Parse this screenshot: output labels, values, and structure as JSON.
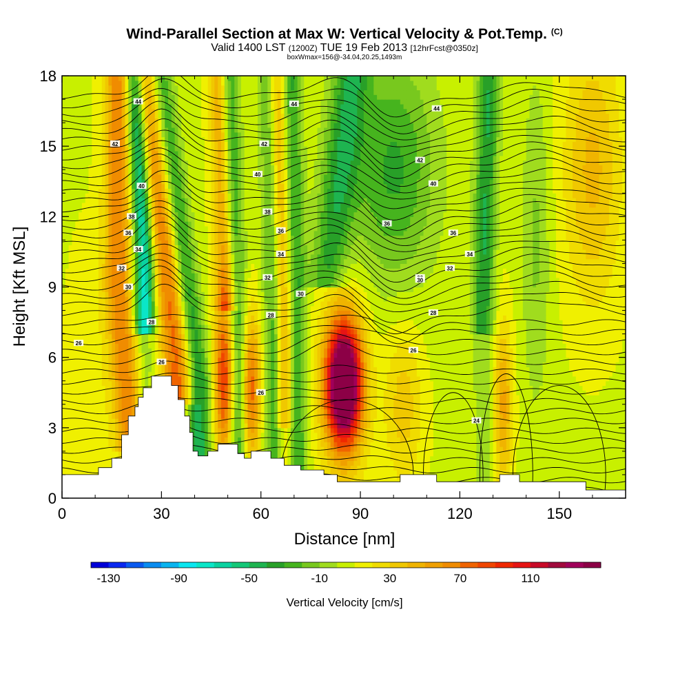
{
  "titles": {
    "main": "Wind-Parallel Section at Max W: Vertical Velocity & Pot.Temp.",
    "main_sup": "(C)",
    "sub_a": "Valid 1400 LST",
    "sub_b": "(1200Z)",
    "sub_c": "TUE 19 Feb 2013",
    "sub_d": "[12hrFcst@0350z]",
    "sub_sub": "boxWmax=156@-34.04,20.25,1493m"
  },
  "chart_data": {
    "type": "heatmap",
    "title": "Wind-Parallel Section at Max W: Vertical Velocity & Pot.Temp.",
    "xlabel": "Distance [nm]",
    "ylabel": "Height [Kft MSL]",
    "xlim": [
      0,
      170
    ],
    "ylim": [
      0,
      18
    ],
    "xticks": [
      0,
      30,
      60,
      90,
      120,
      150
    ],
    "xtick_labels": [
      "0",
      "30",
      "60",
      "90",
      "120",
      "150"
    ],
    "yticks": [
      0,
      3,
      6,
      9,
      12,
      15,
      18
    ],
    "ytick_labels": [
      "0",
      "3",
      "6",
      "9",
      "12",
      "15",
      "18"
    ],
    "colorbar": {
      "label": "Vertical Velocity [cm/s]",
      "min": -140,
      "max": 150,
      "step": 10,
      "tick_values": [
        -130,
        -90,
        -50,
        -10,
        30,
        70,
        110
      ],
      "tick_labels": [
        "-130",
        "-90",
        "-50",
        "-10",
        "30",
        "70",
        "110"
      ],
      "colors": [
        "#0000d8",
        "#0a28f0",
        "#0a5af0",
        "#0a8cf0",
        "#0ab4f0",
        "#0ae6f0",
        "#0ae6c8",
        "#0ad2a0",
        "#14c878",
        "#1eb450",
        "#28a028",
        "#46b41e",
        "#78c81e",
        "#a0dc1e",
        "#c8f000",
        "#f0f000",
        "#f0dc00",
        "#f0c800",
        "#f0b400",
        "#f0a000",
        "#f08c00",
        "#f06400",
        "#f04600",
        "#f02800",
        "#e61414",
        "#c80a28",
        "#a00a3c",
        "#a0005a",
        "#8c0046"
      ]
    },
    "contour_field": "Potential temperature (C)",
    "contour_labels": [
      "44",
      "42",
      "40",
      "38",
      "36",
      "34",
      "32",
      "30",
      "28",
      "26",
      "24"
    ],
    "updraft_max_cm_s": 156,
    "updraft_max_location": {
      "distance_nm": 85,
      "height_kft": 4.9
    }
  }
}
